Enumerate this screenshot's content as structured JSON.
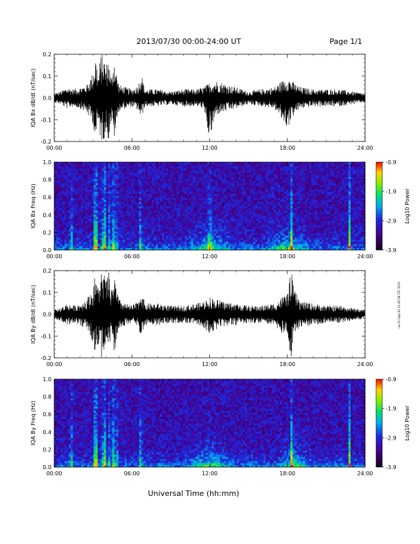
{
  "header": {
    "title": "2013/07/30  00:00-24:00 UT",
    "page": "Page 1/1"
  },
  "x_axis_title": "Universal Time (hh:mm)",
  "side_note": "run Fri Sep 20 12:26:58 CST 2019",
  "chart_data": [
    {
      "type": "line",
      "name": "bx-timeseries",
      "ylabel": "IQA Bx dB/dt (nT/sec)",
      "xlim": [
        0,
        24
      ],
      "ylim": [
        -0.2,
        0.2
      ],
      "x_ticks": [
        "00:00",
        "06:00",
        "12:00",
        "18:00",
        "24:00"
      ],
      "y_ticks": [
        "-0.2",
        "-0.1",
        "0.0",
        "0.1",
        "0.2"
      ],
      "envelope": {
        "x_hours": [
          0,
          0.5,
          1.0,
          1.5,
          2.0,
          2.5,
          3.0,
          3.2,
          3.4,
          3.6,
          3.8,
          4.0,
          4.2,
          4.4,
          4.6,
          4.8,
          5.0,
          5.5,
          6.0,
          6.5,
          6.7,
          7.0,
          8,
          9,
          10,
          11,
          11.5,
          12.0,
          12.5,
          13,
          14,
          15,
          16,
          17,
          18,
          18.5,
          19,
          20,
          21,
          22,
          23,
          24
        ],
        "upper": [
          0.02,
          0.03,
          0.05,
          0.04,
          0.05,
          0.06,
          0.12,
          0.2,
          0.1,
          0.2,
          0.2,
          0.15,
          0.2,
          0.08,
          0.2,
          0.12,
          0.06,
          0.05,
          0.04,
          0.06,
          0.12,
          0.04,
          0.04,
          0.03,
          0.04,
          0.04,
          0.05,
          0.07,
          0.08,
          0.07,
          0.05,
          0.03,
          0.04,
          0.05,
          0.1,
          0.07,
          0.05,
          0.04,
          0.04,
          0.04,
          0.03,
          0.02
        ],
        "lower": [
          -0.02,
          -0.03,
          -0.05,
          -0.04,
          -0.05,
          -0.07,
          -0.12,
          -0.2,
          -0.12,
          -0.2,
          -0.2,
          -0.15,
          -0.2,
          -0.1,
          -0.2,
          -0.14,
          -0.06,
          -0.05,
          -0.04,
          -0.06,
          -0.1,
          -0.04,
          -0.04,
          -0.03,
          -0.04,
          -0.04,
          -0.05,
          -0.2,
          -0.08,
          -0.07,
          -0.05,
          -0.03,
          -0.04,
          -0.05,
          -0.14,
          -0.08,
          -0.05,
          -0.04,
          -0.04,
          -0.04,
          -0.03,
          -0.02
        ]
      }
    },
    {
      "type": "heatmap",
      "name": "bx-spectrogram",
      "ylabel": "IQA Bx Freq (Hz)",
      "xlim": [
        0,
        24
      ],
      "ylim": [
        0.0,
        1.0
      ],
      "x_ticks": [
        "00:00",
        "06:00",
        "12:00",
        "18:00",
        "24:00"
      ],
      "y_ticks": [
        "0.0",
        "0.2",
        "0.4",
        "0.6",
        "0.8",
        "1.0"
      ],
      "colorbar": {
        "label": "Log10 Power",
        "min": -3.9,
        "max": -0.9,
        "ticks": [
          "-0.9",
          "-1.9",
          "-2.9",
          "-3.9"
        ]
      },
      "bursts_hours": [
        1.3,
        3.1,
        3.3,
        3.7,
        3.9,
        4.3,
        4.6,
        4.8,
        6.7,
        12.0,
        18.3,
        22.8
      ],
      "elevated_band_hours": [
        [
          10,
          14
        ],
        [
          16,
          20
        ]
      ]
    },
    {
      "type": "line",
      "name": "by-timeseries",
      "ylabel": "IQA By dB/dt (nT/sec)",
      "xlim": [
        0,
        24
      ],
      "ylim": [
        -0.2,
        0.2
      ],
      "x_ticks": [
        "00:00",
        "06:00",
        "12:00",
        "18:00",
        "24:00"
      ],
      "y_ticks": [
        "-0.2",
        "-0.1",
        "0.0",
        "0.1",
        "0.2"
      ],
      "envelope": {
        "x_hours": [
          0,
          0.5,
          1.0,
          1.5,
          2.0,
          2.5,
          3.0,
          3.2,
          3.4,
          3.6,
          3.8,
          4.0,
          4.2,
          4.4,
          4.6,
          4.8,
          5.0,
          5.5,
          6.0,
          6.5,
          6.7,
          7.0,
          8,
          9,
          10,
          11,
          11.5,
          12.0,
          12.5,
          13,
          14,
          15,
          16,
          17,
          18,
          18.3,
          18.5,
          19,
          20,
          21,
          22,
          23,
          24
        ],
        "upper": [
          0.02,
          0.03,
          0.05,
          0.04,
          0.05,
          0.07,
          0.12,
          0.2,
          0.12,
          0.2,
          0.2,
          0.16,
          0.2,
          0.1,
          0.2,
          0.12,
          0.07,
          0.05,
          0.04,
          0.06,
          0.12,
          0.05,
          0.05,
          0.04,
          0.04,
          0.05,
          0.06,
          0.08,
          0.07,
          0.06,
          0.05,
          0.04,
          0.04,
          0.05,
          0.1,
          0.2,
          0.12,
          0.06,
          0.05,
          0.04,
          0.04,
          0.03,
          0.02
        ],
        "lower": [
          -0.02,
          -0.03,
          -0.05,
          -0.04,
          -0.05,
          -0.07,
          -0.14,
          -0.2,
          -0.13,
          -0.2,
          -0.2,
          -0.16,
          -0.2,
          -0.1,
          -0.2,
          -0.15,
          -0.07,
          -0.05,
          -0.04,
          -0.06,
          -0.11,
          -0.05,
          -0.05,
          -0.04,
          -0.04,
          -0.05,
          -0.06,
          -0.09,
          -0.07,
          -0.06,
          -0.05,
          -0.04,
          -0.04,
          -0.05,
          -0.12,
          -0.2,
          -0.12,
          -0.06,
          -0.05,
          -0.04,
          -0.04,
          -0.03,
          -0.02
        ]
      }
    },
    {
      "type": "heatmap",
      "name": "by-spectrogram",
      "ylabel": "IQA By Freq (Hz)",
      "xlim": [
        0,
        24
      ],
      "ylim": [
        0.0,
        1.0
      ],
      "x_ticks": [
        "00:00",
        "06:00",
        "12:00",
        "18:00",
        "24:00"
      ],
      "y_ticks": [
        "0.0",
        "0.2",
        "0.4",
        "0.6",
        "0.8",
        "1.0"
      ],
      "colorbar": {
        "label": "Log10 Power",
        "min": -3.9,
        "max": -0.9,
        "ticks": [
          "-0.9",
          "-1.9",
          "-2.9",
          "-3.9"
        ]
      },
      "bursts_hours": [
        1.3,
        3.1,
        3.3,
        3.7,
        3.9,
        4.3,
        4.6,
        4.8,
        6.7,
        18.3,
        22.8
      ],
      "elevated_band_hours": [
        [
          10,
          14
        ],
        [
          17,
          20
        ]
      ]
    }
  ]
}
